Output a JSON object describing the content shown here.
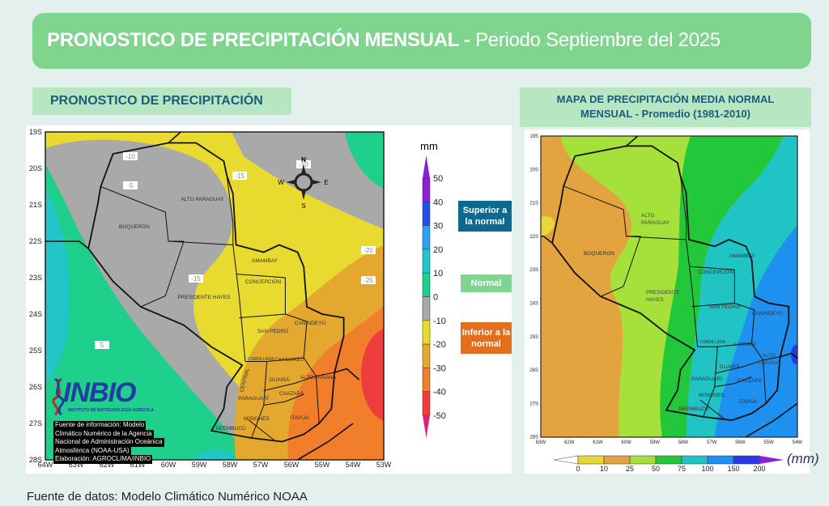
{
  "header": {
    "title_bold": "PRONOSTICO DE PRECIPITACIÓN MENSUAL - ",
    "title_light": "Periodo Septiembre del 2025"
  },
  "left_section": {
    "title": "PRONOSTICO DE PRECIPITACIÓN",
    "map": {
      "y_ticks": [
        "19S",
        "20S",
        "21S",
        "22S",
        "23S",
        "24S",
        "25S",
        "26S",
        "27S",
        "28S"
      ],
      "x_ticks": [
        "64W",
        "63W",
        "62W",
        "61W",
        "60W",
        "59W",
        "58W",
        "57W",
        "56W",
        "55W",
        "54W",
        "53W"
      ],
      "departments": [
        "ALTO PARAGUAY",
        "BOQUERÓN",
        "AMAMBAY",
        "CONCEPCIÓN",
        "PRESIDENTE HAYES",
        "SAN PEDRO",
        "CANINDEYÚ",
        "CORDILLERA",
        "CAAGUAZÚ",
        "CENTRAL",
        "GUAIRÁ",
        "ALTO PARANÁ",
        "CAAZAPÁ",
        "PARAGUARÍ",
        "MISIONES",
        "ITAPÚA",
        "ÑEEMBUCÚ"
      ],
      "contour_labels": [
        "-10",
        "-5",
        "-15",
        "-10",
        "-20",
        "-25",
        "-15",
        "5"
      ],
      "compass": {
        "n": "N",
        "s": "S",
        "e": "E",
        "w": "W"
      },
      "logo": {
        "name": "INBIO",
        "subtitle": "INSTITUTO DE BIOTECNOLOGÍA AGRÍCOLA"
      },
      "source_note": [
        "Fuente de información: Modelo",
        "Climático Numérico de la Agencia",
        "Nacional de Administración Oceánica",
        "Atmosférica (NOAA-USA)",
        "Elaboración: AGROCLIMA/INBIO"
      ]
    },
    "colorbar": {
      "unit": "mm",
      "ticks": [
        "50",
        "40",
        "30",
        "20",
        "10",
        "0",
        "-10",
        "-20",
        "-30",
        "-40",
        "-50"
      ],
      "colors_top_to_bottom": [
        "#8b1fd6",
        "#2250e6",
        "#2aa2f2",
        "#22c5c8",
        "#1fcf8c",
        "#a9a9a9",
        "#e8da2e",
        "#e4a82f",
        "#f07e2b",
        "#ef3d3d"
      ],
      "arrow_top_color": "#8b1fd6",
      "arrow_bottom_color": "#e0207d"
    },
    "categories": [
      {
        "label": "Superior a la normal",
        "color": "#0d6a8f"
      },
      {
        "label": "Normal",
        "color": "#7fd48e"
      },
      {
        "label": "Inferior a la normal",
        "color": "#e36f1e"
      }
    ]
  },
  "right_section": {
    "title_line1": "MAPA DE PRECIPITACIÓN MEDIA NORMAL",
    "title_line2": "MENSUAL - Promedio (1981-2010)",
    "map": {
      "y_ticks": [
        "19S",
        "20S",
        "21S",
        "22S",
        "23S",
        "24S",
        "25S",
        "26S",
        "27S",
        "28S"
      ],
      "x_ticks": [
        "63W",
        "62W",
        "61W",
        "60W",
        "59W",
        "58W",
        "57W",
        "56W",
        "55W",
        "54W"
      ],
      "departments": [
        "ALTO PARAGUAY",
        "BOQUERON",
        "PRESIDENTE HAYES",
        "AMAMBAY",
        "CONCEPCIÓN",
        "SAN PEDRO",
        "CANINDEYÚ",
        "CORDILLERA",
        "CAAGUAZÚ",
        "ALTO PARANÁ",
        "GUAIRÁ",
        "PARAGUARÍ",
        "CAAZAPÁ",
        "MISIONES",
        "ITAPÚA",
        "ÑEEMBUCÚ"
      ]
    },
    "colorbar": {
      "unit": "(mm)",
      "ticks": [
        "0",
        "10",
        "25",
        "50",
        "75",
        "100",
        "150",
        "200"
      ],
      "colors": [
        "#e6d83a",
        "#e3a33e",
        "#a6e03a",
        "#22c83a",
        "#20c4c4",
        "#1e90f0",
        "#2a3ae8"
      ],
      "arrow_left_color": "#ffffff",
      "arrow_right_color": "#8b1fd6"
    }
  },
  "footer": "Fuente de datos: Modelo Climático Numérico NOAA"
}
